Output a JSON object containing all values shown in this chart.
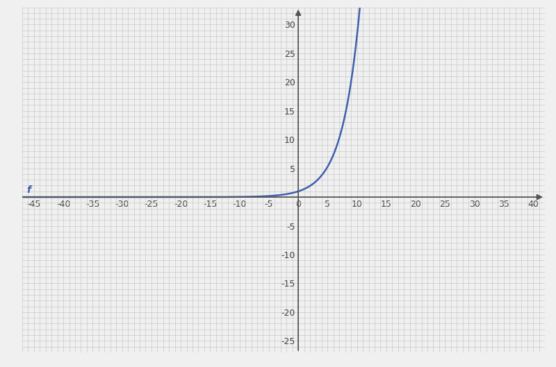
{
  "xlim": [
    -47,
    42
  ],
  "ylim": [
    -27,
    33
  ],
  "xticks_major": 5,
  "yticks_major": 5,
  "xticks_minor": 1,
  "yticks_minor": 1,
  "curve_color": "#3d5fad",
  "curve_linewidth": 1.8,
  "axis_color": "#555555",
  "grid_color": "#c8c8c8",
  "grid_linewidth": 0.5,
  "background_color": "#f0f0f0",
  "f_label": "f",
  "f_label_color": "#3d5fad",
  "exponent_denominator": 3.0,
  "x_curve_start": -47,
  "x_curve_end": 11.25,
  "tick_fontsize": 9,
  "figwidth": 8.0,
  "figheight": 5.29,
  "dpi": 100
}
